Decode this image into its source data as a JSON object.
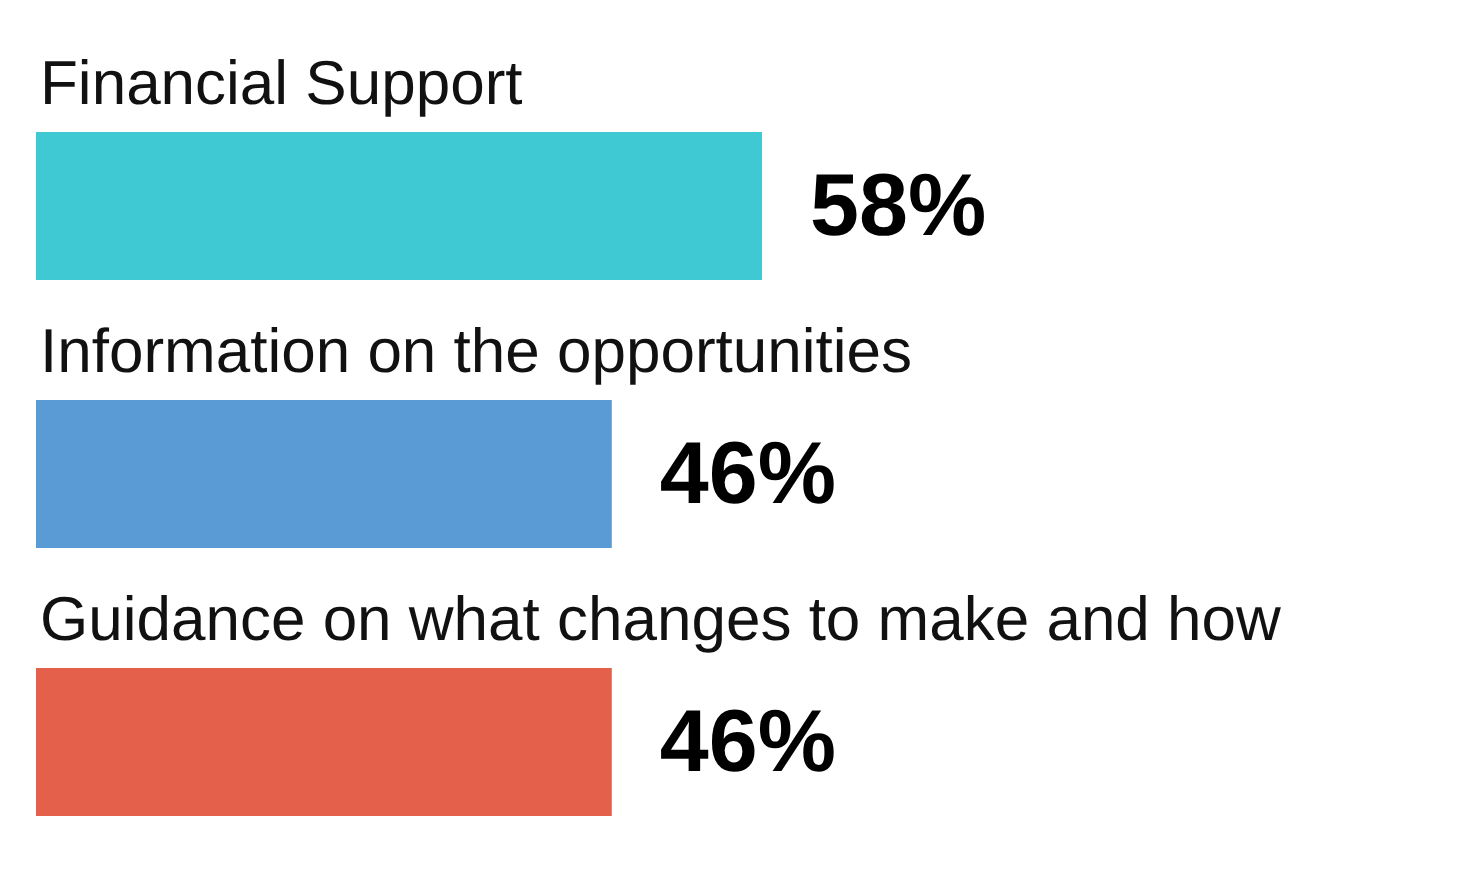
{
  "chart_data": {
    "type": "bar",
    "orientation": "horizontal",
    "categories": [
      "Financial Support",
      "Information on the opportunities",
      "Guidance on what changes to make and how"
    ],
    "values": [
      58,
      46,
      46
    ],
    "colors": [
      "#3ec9d3",
      "#5b9bd5",
      "#e5604a"
    ],
    "value_labels": [
      "58%",
      "46%",
      "46%"
    ]
  }
}
